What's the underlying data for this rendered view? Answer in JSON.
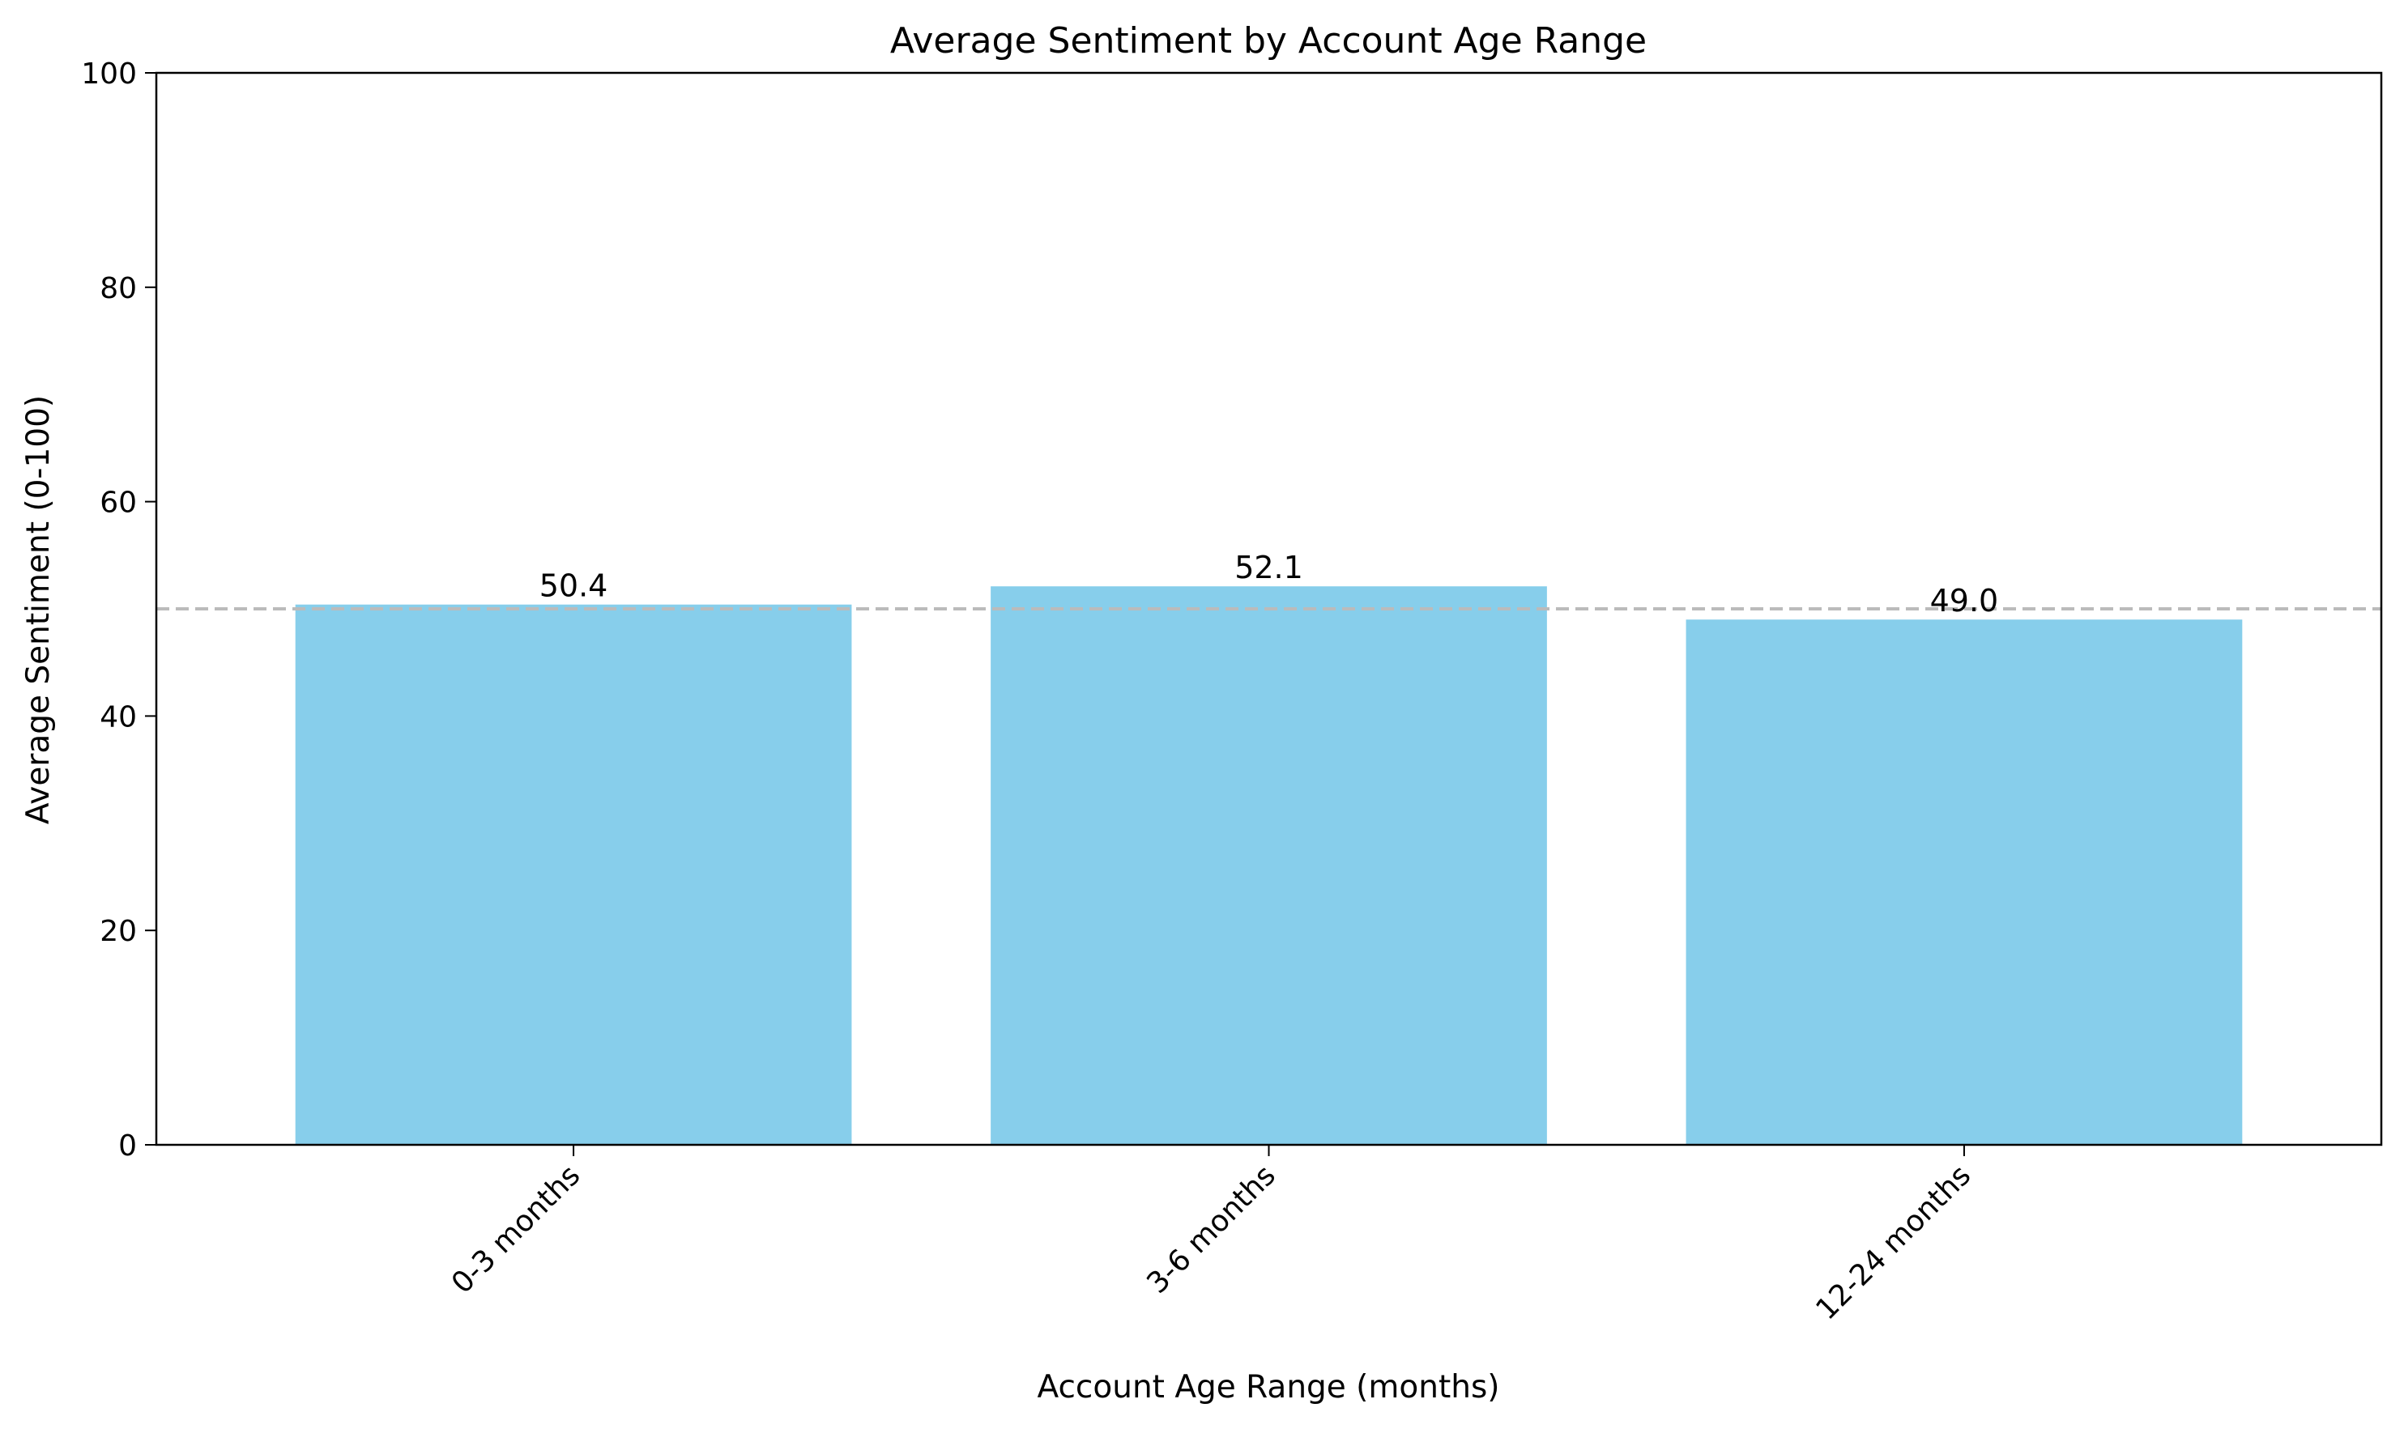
{
  "chart_data": {
    "type": "bar",
    "title": "Average Sentiment by Account Age Range",
    "xlabel": "Account Age Range (months)",
    "ylabel": "Average Sentiment (0-100)",
    "categories": [
      "0-3 months",
      "3-6 months",
      "12-24 months"
    ],
    "values": [
      50.4,
      52.1,
      49.0
    ],
    "value_labels": [
      "50.4",
      "52.1",
      "49.0"
    ],
    "ylim": [
      0,
      100
    ],
    "yticks": [
      0,
      20,
      40,
      60,
      80,
      100
    ],
    "ytick_labels": [
      "0",
      "20",
      "40",
      "60",
      "80",
      "100"
    ],
    "reference_line": {
      "y": 50,
      "style": "dashed",
      "color": "#bbbbbb"
    },
    "bar_color": "#87ceeb",
    "grid": false,
    "legend": "none"
  }
}
